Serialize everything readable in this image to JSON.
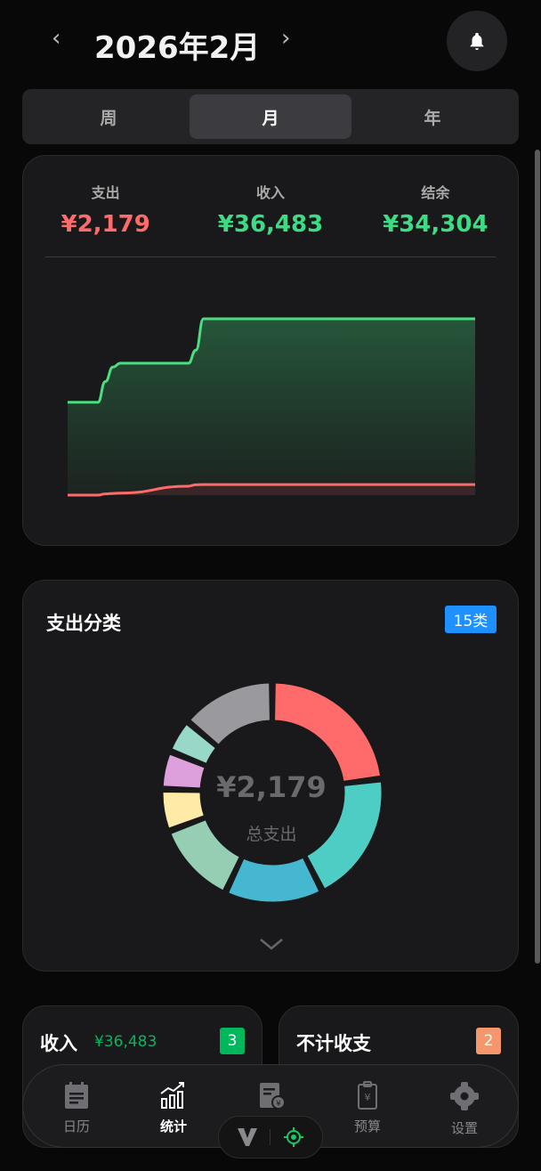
{
  "header": {
    "title": "2026年2月",
    "prev_icon": "chevron-left-icon",
    "next_icon": "chevron-right-icon",
    "bell_icon": "bell-icon"
  },
  "period_tabs": [
    {
      "label": "周",
      "active": false
    },
    {
      "label": "月",
      "active": true
    },
    {
      "label": "年",
      "active": false
    }
  ],
  "summary": {
    "expense": {
      "label": "支出",
      "value": "¥2,179",
      "color": "#ff6b6b"
    },
    "income": {
      "label": "收入",
      "value": "¥36,483",
      "color": "#3ddc84"
    },
    "balance": {
      "label": "结余",
      "value": "¥34,304",
      "color": "#3ddc84"
    }
  },
  "chart_data": [
    {
      "type": "area",
      "title": "",
      "xlabel": "",
      "ylabel": "",
      "grid": false,
      "x": [
        1,
        3,
        3.5,
        4,
        4.5,
        9,
        9.5,
        10,
        28
      ],
      "series": [
        {
          "values": [
            19200,
            19200,
            23500,
            26500,
            27300,
            27300,
            30000,
            36483,
            36483
          ],
          "color": "#4ade80"
        },
        {
          "values": [
            0,
            0,
            250,
            350,
            420,
            1850,
            2150,
            2179,
            2179
          ],
          "color": "#ff6b6b"
        }
      ],
      "ylim": [
        0,
        36483
      ],
      "xlim": [
        1,
        28
      ]
    },
    {
      "type": "pie",
      "title": "支出分类",
      "center_value": "¥2,179",
      "center_label": "总支出",
      "slices_percent": [
        23,
        19.5,
        14.5,
        12.3,
        6.2,
        5.6,
        5,
        13.9
      ],
      "colors": [
        "#ff6b6b",
        "#4ecdc4",
        "#45b7d1",
        "#96ceb4",
        "#ffeaa7",
        "#dda0dd",
        "#98d8c8",
        "#9a9a9e"
      ]
    }
  ],
  "category": {
    "title": "支出分类",
    "count_badge": "15类",
    "badge_color": "#1e90ff",
    "expand_icon": "chevron-down-icon"
  },
  "income_card": {
    "title": "收入",
    "amount": "¥36,483",
    "count": "3",
    "badge_color": "#00b85c"
  },
  "excluded_card": {
    "title": "不计收支",
    "count": "2",
    "badge_color": "#f4976c"
  },
  "bottom_nav": [
    {
      "label": "日历",
      "icon": "calendar-note-icon",
      "active": false
    },
    {
      "label": "统计",
      "icon": "chart-icon",
      "active": true
    },
    {
      "label": "",
      "icon": "bill-yuan-icon",
      "active": false
    },
    {
      "label": "预算",
      "icon": "clipboard-yuan-icon",
      "active": false
    },
    {
      "label": "设置",
      "icon": "gear-icon",
      "active": false
    }
  ],
  "floating": {
    "left_icon": "v-logo-icon",
    "right_icon": "target-icon"
  }
}
